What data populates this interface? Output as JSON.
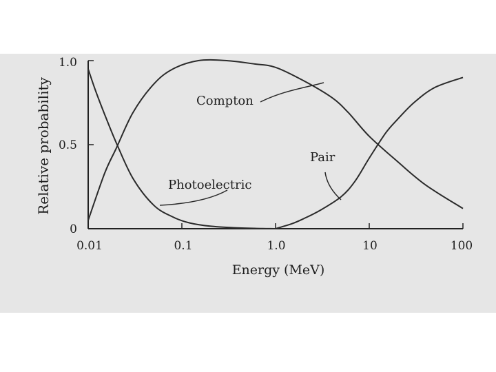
{
  "chart_data": {
    "type": "line",
    "xscale": "log",
    "xlim": [
      0.01,
      100
    ],
    "ylim": [
      0,
      1.0
    ],
    "xlabel": "Energy (MeV)",
    "ylabel": "Relative probability",
    "x_ticks": [
      "0.01",
      "0.1",
      "1.0",
      "10",
      "100"
    ],
    "y_ticks": [
      "0",
      "0.5",
      "1.0"
    ],
    "grid": false,
    "background": "#e6e6e6",
    "line_color": "#2a2a2a",
    "series": [
      {
        "name": "Photoelectric",
        "x": [
          0.01,
          0.012,
          0.015,
          0.02,
          0.03,
          0.05,
          0.08,
          0.12,
          0.2,
          0.35,
          0.6,
          1.0
        ],
        "y": [
          0.95,
          0.82,
          0.68,
          0.51,
          0.3,
          0.14,
          0.07,
          0.035,
          0.015,
          0.006,
          0.002,
          0.0
        ]
      },
      {
        "name": "Compton",
        "x": [
          0.01,
          0.015,
          0.02,
          0.03,
          0.05,
          0.08,
          0.15,
          0.3,
          0.6,
          1.0,
          2.0,
          4.0,
          6.0,
          10,
          20,
          40,
          100
        ],
        "y": [
          0.05,
          0.33,
          0.48,
          0.69,
          0.86,
          0.95,
          1.0,
          1.0,
          0.98,
          0.96,
          0.88,
          0.78,
          0.69,
          0.55,
          0.4,
          0.26,
          0.12
        ]
      },
      {
        "name": "Pair",
        "x": [
          1.0,
          1.5,
          2.0,
          3.0,
          5.0,
          7.0,
          10,
          15,
          20,
          30,
          50,
          100
        ],
        "y": [
          0.0,
          0.03,
          0.06,
          0.11,
          0.19,
          0.28,
          0.42,
          0.57,
          0.65,
          0.75,
          0.84,
          0.9
        ]
      }
    ],
    "annotations": [
      "Compton",
      "Pair",
      "Photoelectric"
    ]
  }
}
